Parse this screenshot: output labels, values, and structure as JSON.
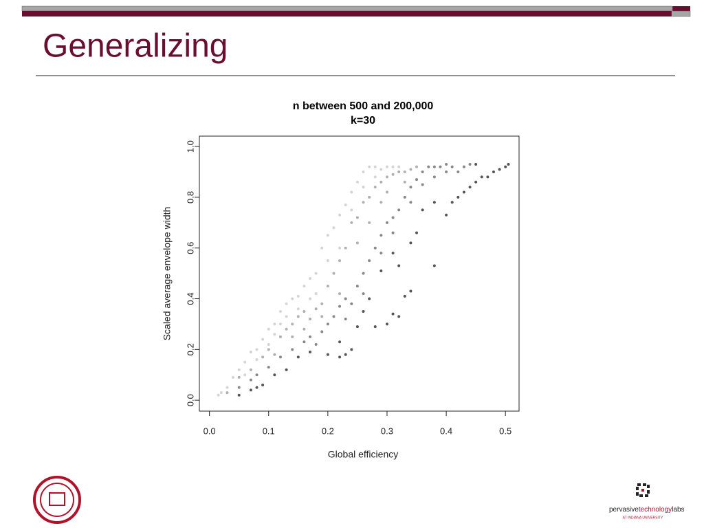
{
  "slide_title": "Generalizing",
  "logo": {
    "words": [
      "pervasive",
      "technology",
      "labs"
    ],
    "subtitle": "AT INDIANA UNIVERSITY"
  },
  "chart_data": {
    "type": "scatter",
    "title": "n between 500 and 200,000",
    "subtitle": "k=30",
    "x_label": "Global efficiency",
    "y_label": "Scaled average envelope width",
    "xlim": [
      -0.017,
      0.523
    ],
    "ylim": [
      -0.043,
      1.041
    ],
    "xticks": [
      {
        "value": 0,
        "label": "0.0"
      },
      0.1,
      0.2,
      0.3,
      0.4,
      0.5
    ],
    "yticks": [
      {
        "value": 0,
        "label": "0.0"
      },
      0.2,
      0.4,
      0.6,
      0.8,
      {
        "value": 1,
        "label": "1.0"
      }
    ],
    "grid": false,
    "series": [
      {
        "color": "#d4d4d4",
        "x": [
          0.015,
          0.02,
          0.03,
          0.04,
          0.05,
          0.06,
          0.07,
          0.08,
          0.09,
          0.1,
          0.11,
          0.12,
          0.13,
          0.14,
          0.15,
          0.16,
          0.17,
          0.18,
          0.19,
          0.2,
          0.21,
          0.22,
          0.23,
          0.24,
          0.25,
          0.26,
          0.27,
          0.28,
          0.29,
          0.3,
          0.31,
          0.32,
          0.12,
          0.1,
          0.13,
          0.15,
          0.17,
          0.18,
          0.2,
          0.22,
          0.24,
          0.26,
          0.28,
          0.06,
          0.08,
          0.11
        ],
        "values": [
          0.02,
          0.03,
          0.05,
          0.09,
          0.12,
          0.15,
          0.19,
          0.2,
          0.24,
          0.28,
          0.3,
          0.35,
          0.38,
          0.4,
          0.41,
          0.45,
          0.48,
          0.5,
          0.6,
          0.65,
          0.68,
          0.73,
          0.77,
          0.82,
          0.86,
          0.9,
          0.92,
          0.92,
          0.91,
          0.92,
          0.92,
          0.92,
          0.3,
          0.22,
          0.33,
          0.36,
          0.4,
          0.42,
          0.55,
          0.6,
          0.75,
          0.84,
          0.88,
          0.1,
          0.16,
          0.26
        ]
      },
      {
        "color": "#b0b0b0",
        "x": [
          0.03,
          0.05,
          0.07,
          0.09,
          0.1,
          0.12,
          0.13,
          0.14,
          0.15,
          0.16,
          0.17,
          0.18,
          0.19,
          0.2,
          0.21,
          0.22,
          0.23,
          0.24,
          0.25,
          0.26,
          0.27,
          0.28,
          0.29,
          0.3,
          0.31,
          0.32,
          0.33,
          0.34,
          0.35,
          0.11,
          0.14,
          0.16,
          0.19,
          0.22,
          0.25,
          0.27,
          0.29,
          0.3,
          0.33
        ],
        "values": [
          0.03,
          0.09,
          0.12,
          0.17,
          0.2,
          0.25,
          0.28,
          0.3,
          0.33,
          0.35,
          0.32,
          0.36,
          0.38,
          0.45,
          0.5,
          0.55,
          0.6,
          0.7,
          0.72,
          0.78,
          0.8,
          0.84,
          0.86,
          0.88,
          0.89,
          0.9,
          0.9,
          0.91,
          0.92,
          0.18,
          0.25,
          0.28,
          0.33,
          0.42,
          0.62,
          0.7,
          0.78,
          0.82,
          0.86
        ]
      },
      {
        "color": "#888888",
        "x": [
          0.05,
          0.07,
          0.08,
          0.1,
          0.12,
          0.14,
          0.16,
          0.17,
          0.19,
          0.2,
          0.21,
          0.22,
          0.23,
          0.24,
          0.25,
          0.26,
          0.27,
          0.28,
          0.29,
          0.3,
          0.31,
          0.32,
          0.33,
          0.34,
          0.35,
          0.36,
          0.37,
          0.38,
          0.39,
          0.4,
          0.41,
          0.42,
          0.43,
          0.44,
          0.18,
          0.23,
          0.26,
          0.29,
          0.31,
          0.34,
          0.36,
          0.38,
          0.4
        ],
        "values": [
          0.05,
          0.08,
          0.1,
          0.13,
          0.17,
          0.2,
          0.23,
          0.25,
          0.27,
          0.3,
          0.33,
          0.37,
          0.4,
          0.38,
          0.45,
          0.5,
          0.55,
          0.6,
          0.65,
          0.7,
          0.72,
          0.75,
          0.8,
          0.84,
          0.87,
          0.9,
          0.92,
          0.92,
          0.92,
          0.93,
          0.92,
          0.9,
          0.92,
          0.93,
          0.22,
          0.32,
          0.42,
          0.58,
          0.66,
          0.78,
          0.85,
          0.88,
          0.9
        ]
      },
      {
        "color": "#555555",
        "x": [
          0.05,
          0.07,
          0.08,
          0.09,
          0.11,
          0.13,
          0.15,
          0.17,
          0.2,
          0.22,
          0.23,
          0.24,
          0.22,
          0.25,
          0.26,
          0.28,
          0.3,
          0.31,
          0.32,
          0.33,
          0.34,
          0.32,
          0.35,
          0.38,
          0.4,
          0.41,
          0.42,
          0.43,
          0.44,
          0.45,
          0.46,
          0.47,
          0.48,
          0.49,
          0.5,
          0.505,
          0.27,
          0.29,
          0.31,
          0.34,
          0.36,
          0.38,
          0.45
        ],
        "values": [
          0.02,
          0.04,
          0.05,
          0.06,
          0.1,
          0.12,
          0.17,
          0.19,
          0.18,
          0.17,
          0.18,
          0.2,
          0.23,
          0.29,
          0.35,
          0.29,
          0.3,
          0.34,
          0.33,
          0.41,
          0.43,
          0.53,
          0.66,
          0.53,
          0.73,
          0.78,
          0.8,
          0.82,
          0.84,
          0.86,
          0.88,
          0.88,
          0.9,
          0.91,
          0.92,
          0.93,
          0.4,
          0.51,
          0.58,
          0.62,
          0.75,
          0.78,
          0.93
        ]
      }
    ]
  }
}
